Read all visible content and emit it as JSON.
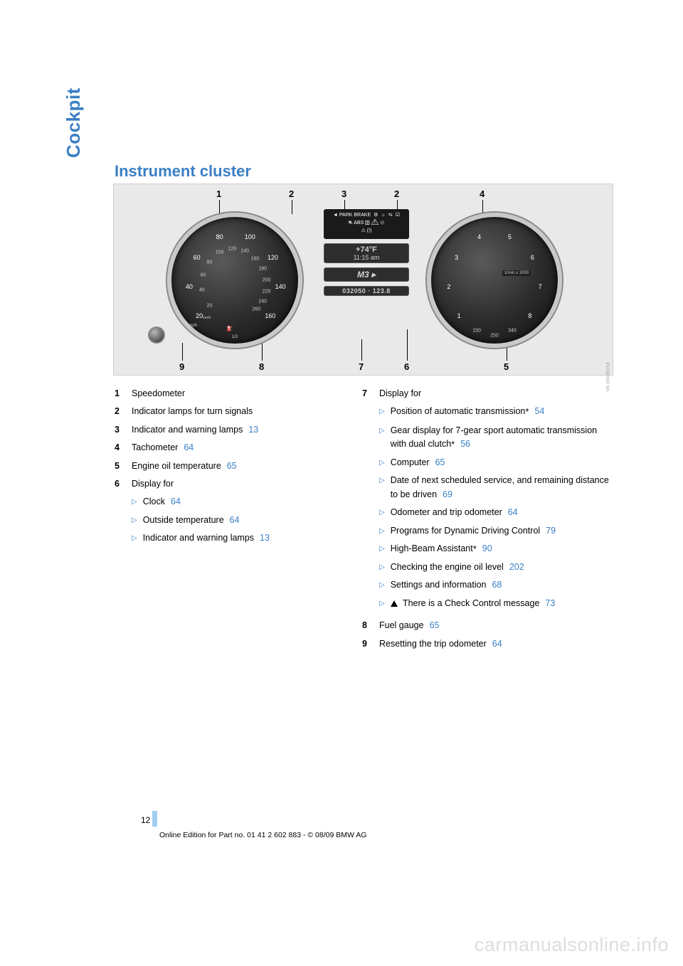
{
  "section_tab": "Cockpit",
  "heading": "Instrument cluster",
  "figure": {
    "top_callouts": [
      "1",
      "2",
      "3",
      "2",
      "4"
    ],
    "bottom_callouts": [
      "9",
      "8",
      "7",
      "6",
      "5"
    ],
    "speedo_outer": [
      "20",
      "40",
      "60",
      "80",
      "100",
      "120",
      "140",
      "160"
    ],
    "speedo_inner": [
      "20",
      "40",
      "60",
      "80",
      "100",
      "120",
      "140",
      "160",
      "180",
      "200",
      "220",
      "240",
      "260"
    ],
    "speedo_unit_outer": "mph",
    "speedo_unit_inner": "km/h",
    "tacho_outer": [
      "1",
      "2",
      "3",
      "4",
      "5",
      "6",
      "7",
      "8"
    ],
    "tacho_inner": [
      "150",
      "250",
      "340"
    ],
    "tacho_label": "1/min x 1000",
    "center_top_line1": "◄ PARK BRAKE",
    "center_icons": [
      "⚙",
      "☼",
      "⇆",
      "☑"
    ],
    "center_line2": "⛐  ABS  ▥  ⚠  ⓟ",
    "center_line3": "⚠  (!)",
    "lcd_temp": "+74°F",
    "lcd_time": "11:15 am",
    "lcd_gear": "M3 ▸",
    "lcd_odo": "032050 · 123.8",
    "credit": "VB 20426US8"
  },
  "legend_left": [
    {
      "num": "1",
      "text": "Speedometer"
    },
    {
      "num": "2",
      "text": "Indicator lamps for turn signals"
    },
    {
      "num": "3",
      "text": "Indicator and warning lamps",
      "ref": "13"
    },
    {
      "num": "4",
      "text": "Tachometer",
      "ref": "64"
    },
    {
      "num": "5",
      "text": "Engine oil temperature",
      "ref": "65"
    },
    {
      "num": "6",
      "text": "Display for",
      "subs": [
        {
          "text": "Clock",
          "ref": "64"
        },
        {
          "text": "Outside temperature",
          "ref": "64"
        },
        {
          "text": "Indicator and warning lamps",
          "ref": "13"
        }
      ]
    }
  ],
  "legend_right": [
    {
      "num": "7",
      "text": "Display for",
      "subs": [
        {
          "text": "Position of automatic transmission",
          "star": true,
          "ref": "54"
        },
        {
          "text": "Gear display for 7-gear sport automatic transmission with dual clutch",
          "star": true,
          "ref": "56"
        },
        {
          "text": "Computer",
          "ref": "65"
        },
        {
          "text": "Date of next scheduled service, and remaining distance to be driven",
          "ref": "69"
        },
        {
          "text": "Odometer and trip odometer",
          "ref": "64"
        },
        {
          "text": "Programs for Dynamic Driving Control",
          "ref": "79"
        },
        {
          "text": "High-Beam Assistant",
          "star": true,
          "ref": "90"
        },
        {
          "text": "Checking the engine oil level",
          "ref": "202"
        },
        {
          "text": "Settings and information",
          "ref": "68"
        },
        {
          "warn": true,
          "text": "There is a Check Control message",
          "ref": "73"
        }
      ]
    },
    {
      "num": "8",
      "text": "Fuel gauge",
      "ref": "65"
    },
    {
      "num": "9",
      "text": "Resetting the trip odometer",
      "ref": "64"
    }
  ],
  "page_number": "12",
  "footer": "Online Edition for Part no. 01 41 2 602 883 - © 08/09 BMW AG",
  "watermark": "carmanualsonline.info"
}
